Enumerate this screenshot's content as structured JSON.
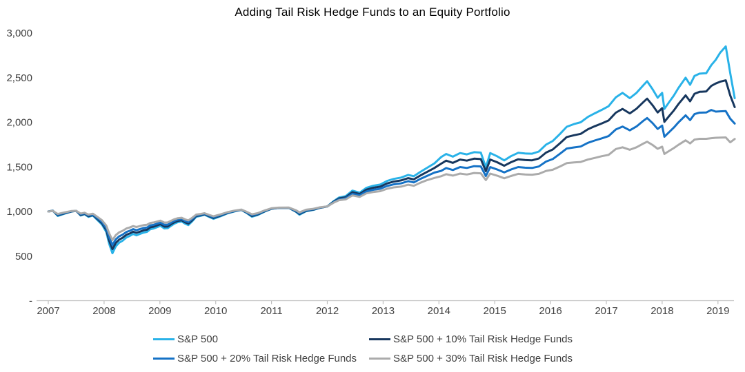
{
  "title": "Adding Tail Risk Hedge Funds to an Equity Portfolio",
  "chart_data": {
    "type": "line",
    "title": "Adding Tail Risk Hedge Funds to an Equity Portfolio",
    "x_unit": "year (monthly index points, portfolio value indexed to 1,000 at start of 2007)",
    "ylim": [
      0,
      3000
    ],
    "xlim": [
      2007,
      2019.3
    ],
    "grid": false,
    "legend_position": "bottom",
    "style": {
      "axis_line_color": "#BFBFBF",
      "tick_label_color": "#404040",
      "title_color": "#000000",
      "background": "#FFFFFF"
    },
    "y_ticks": [
      {
        "v": 0,
        "label": "-"
      },
      {
        "v": 500,
        "label": "500"
      },
      {
        "v": 1000,
        "label": "1,000"
      },
      {
        "v": 1500,
        "label": "1,500"
      },
      {
        "v": 2000,
        "label": "2,000"
      },
      {
        "v": 2500,
        "label": "2,500"
      },
      {
        "v": 3000,
        "label": "3,000"
      }
    ],
    "x_ticks": [
      {
        "v": 2007,
        "label": "2007"
      },
      {
        "v": 2008,
        "label": "2008"
      },
      {
        "v": 2009,
        "label": "2009"
      },
      {
        "v": 2010,
        "label": "2010"
      },
      {
        "v": 2011,
        "label": "2011"
      },
      {
        "v": 2012,
        "label": "2012"
      },
      {
        "v": 2013,
        "label": "2013"
      },
      {
        "v": 2014,
        "label": "2014"
      },
      {
        "v": 2015,
        "label": "2015"
      },
      {
        "v": 2016,
        "label": "2016"
      },
      {
        "v": 2017,
        "label": "2017"
      },
      {
        "v": 2018,
        "label": "2018"
      },
      {
        "v": 2019,
        "label": "2019"
      }
    ],
    "x": [
      2007.0,
      2007.08,
      2007.17,
      2007.29,
      2007.42,
      2007.5,
      2007.58,
      2007.65,
      2007.72,
      2007.8,
      2007.88,
      2007.96,
      2008.04,
      2008.09,
      2008.15,
      2008.21,
      2008.27,
      2008.33,
      2008.4,
      2008.46,
      2008.52,
      2008.58,
      2008.64,
      2008.71,
      2008.77,
      2008.83,
      2008.89,
      2008.95,
      2009.01,
      2009.08,
      2009.14,
      2009.2,
      2009.26,
      2009.32,
      2009.39,
      2009.45,
      2009.51,
      2009.58,
      2009.65,
      2009.72,
      2009.8,
      2009.88,
      2009.96,
      2010.08,
      2010.21,
      2010.33,
      2010.46,
      2010.55,
      2010.65,
      2010.75,
      2010.88,
      2011.0,
      2011.13,
      2011.31,
      2011.44,
      2011.5,
      2011.62,
      2011.75,
      2011.87,
      2012.0,
      2012.12,
      2012.21,
      2012.33,
      2012.45,
      2012.58,
      2012.7,
      2012.82,
      2012.95,
      2013.07,
      2013.19,
      2013.32,
      2013.45,
      2013.55,
      2013.67,
      2013.79,
      2013.92,
      2014.04,
      2014.13,
      2014.25,
      2014.38,
      2014.5,
      2014.63,
      2014.75,
      2014.84,
      2014.92,
      2015.04,
      2015.17,
      2015.29,
      2015.42,
      2015.54,
      2015.67,
      2015.79,
      2015.92,
      2016.04,
      2016.17,
      2016.29,
      2016.42,
      2016.54,
      2016.67,
      2016.79,
      2016.92,
      2017.04,
      2017.17,
      2017.29,
      2017.42,
      2017.54,
      2017.67,
      2017.73,
      2017.83,
      2017.92,
      2018.0,
      2018.04,
      2018.13,
      2018.21,
      2018.29,
      2018.42,
      2018.5,
      2018.58,
      2018.67,
      2018.79,
      2018.88,
      2018.96,
      2019.04,
      2019.14,
      2019.22,
      2019.3
    ],
    "series": [
      {
        "name": "S&P 500",
        "color": "#29B2E8",
        "values": [
          1000,
          1010,
          950,
          975,
          1000,
          1008,
          955,
          970,
          940,
          955,
          905,
          855,
          770,
          640,
          532,
          610,
          650,
          672,
          710,
          726,
          748,
          733,
          748,
          764,
          772,
          802,
          810,
          825,
          840,
          810,
          812,
          840,
          864,
          880,
          888,
          864,
          848,
          890,
          941,
          950,
          964,
          940,
          918,
          945,
          979,
          1000,
          1018,
          985,
          941,
          960,
          1000,
          1030,
          1040,
          1041,
          995,
          964,
          1003,
          1018,
          1041,
          1057,
          1118,
          1157,
          1172,
          1234,
          1211,
          1265,
          1288,
          1303,
          1342,
          1365,
          1380,
          1410,
          1395,
          1445,
          1490,
          1540,
          1610,
          1645,
          1615,
          1655,
          1640,
          1665,
          1660,
          1496,
          1655,
          1620,
          1573,
          1620,
          1658,
          1650,
          1648,
          1672,
          1750,
          1790,
          1870,
          1950,
          1980,
          2000,
          2060,
          2100,
          2140,
          2180,
          2280,
          2330,
          2270,
          2330,
          2420,
          2460,
          2370,
          2275,
          2330,
          2150,
          2230,
          2300,
          2383,
          2500,
          2420,
          2520,
          2545,
          2550,
          2640,
          2700,
          2780,
          2850,
          2550,
          2270
        ]
      },
      {
        "name": "S&P 500 + 10% Tail Risk Hedge Funds",
        "color": "#17375E",
        "values": [
          1000,
          1009,
          957,
          979,
          1001,
          1007,
          961,
          974,
          947,
          960,
          915,
          869,
          791,
          674,
          578,
          648,
          684,
          705,
          739,
          754,
          774,
          761,
          774,
          789,
          796,
          823,
          830,
          844,
          857,
          830,
          831,
          857,
          879,
          894,
          901,
          879,
          864,
          902,
          948,
          956,
          969,
          947,
          927,
          952,
          983,
          1002,
          1019,
          989,
          949,
          966,
          1003,
          1031,
          1040,
          1041,
          1000,
          972,
          1008,
          1021,
          1042,
          1056,
          1112,
          1147,
          1160,
          1216,
          1196,
          1245,
          1266,
          1279,
          1314,
          1335,
          1348,
          1374,
          1360,
          1405,
          1445,
          1488,
          1536,
          1570,
          1545,
          1582,
          1570,
          1592,
          1588,
          1452,
          1582,
          1553,
          1513,
          1552,
          1585,
          1577,
          1574,
          1594,
          1660,
          1695,
          1765,
          1835,
          1855,
          1870,
          1922,
          1955,
          1988,
          2020,
          2108,
          2150,
          2100,
          2152,
          2230,
          2265,
          2190,
          2110,
          2158,
          2005,
          2073,
          2133,
          2203,
          2302,
          2235,
          2320,
          2341,
          2345,
          2408,
          2435,
          2455,
          2470,
          2300,
          2170
        ]
      },
      {
        "name": "S&P 500 + 20% Tail Risk Hedge Funds",
        "color": "#1572C6",
        "values": [
          1000,
          1008,
          964,
          984,
          1003,
          1007,
          968,
          979,
          955,
          966,
          926,
          884,
          814,
          711,
          625,
          688,
          721,
          740,
          771,
          784,
          802,
          790,
          802,
          815,
          821,
          845,
          851,
          863,
          875,
          851,
          852,
          875,
          895,
          908,
          914,
          894,
          881,
          915,
          956,
          963,
          975,
          954,
          936,
          959,
          987,
          1005,
          1020,
          993,
          958,
          973,
          1007,
          1033,
          1041,
          1042,
          1006,
          980,
          1013,
          1025,
          1044,
          1056,
          1106,
          1137,
          1148,
          1198,
          1181,
          1225,
          1243,
          1255,
          1286,
          1304,
          1315,
          1340,
          1326,
          1366,
          1400,
          1436,
          1455,
          1487,
          1465,
          1498,
          1488,
          1508,
          1505,
          1398,
          1498,
          1472,
          1438,
          1470,
          1498,
          1491,
          1488,
          1504,
          1560,
          1588,
          1648,
          1706,
          1718,
          1728,
          1770,
          1795,
          1820,
          1845,
          1920,
          1952,
          1910,
          1953,
          2020,
          2048,
          1990,
          1925,
          1963,
          1838,
          1893,
          1941,
          1998,
          2078,
          2024,
          2092,
          2108,
          2110,
          2138,
          2120,
          2123,
          2125,
          2040,
          1985
        ]
      },
      {
        "name": "S&P 500 + 30% Tail Risk Hedge Funds",
        "color": "#ABABAB",
        "values": [
          1000,
          1007,
          972,
          990,
          1006,
          1008,
          977,
          986,
          965,
          975,
          940,
          903,
          842,
          757,
          679,
          736,
          766,
          783,
          810,
          821,
          836,
          826,
          836,
          847,
          852,
          872,
          877,
          887,
          897,
          876,
          877,
          896,
          913,
          925,
          930,
          912,
          900,
          930,
          965,
          971,
          981,
          962,
          946,
          967,
          992,
          1009,
          1022,
          998,
          968,
          981,
          1012,
          1036,
          1043,
          1044,
          1013,
          990,
          1020,
          1030,
          1047,
          1057,
          1101,
          1127,
          1136,
          1180,
          1164,
          1203,
          1218,
          1228,
          1255,
          1270,
          1279,
          1300,
          1288,
          1323,
          1352,
          1376,
          1395,
          1418,
          1402,
          1425,
          1415,
          1432,
          1428,
          1352,
          1425,
          1402,
          1372,
          1398,
          1422,
          1415,
          1412,
          1422,
          1455,
          1468,
          1505,
          1542,
          1550,
          1555,
          1582,
          1600,
          1620,
          1635,
          1700,
          1720,
          1692,
          1720,
          1764,
          1782,
          1745,
          1703,
          1727,
          1645,
          1680,
          1711,
          1747,
          1798,
          1763,
          1806,
          1815,
          1815,
          1822,
          1826,
          1828,
          1830,
          1775,
          1813
        ]
      }
    ]
  }
}
